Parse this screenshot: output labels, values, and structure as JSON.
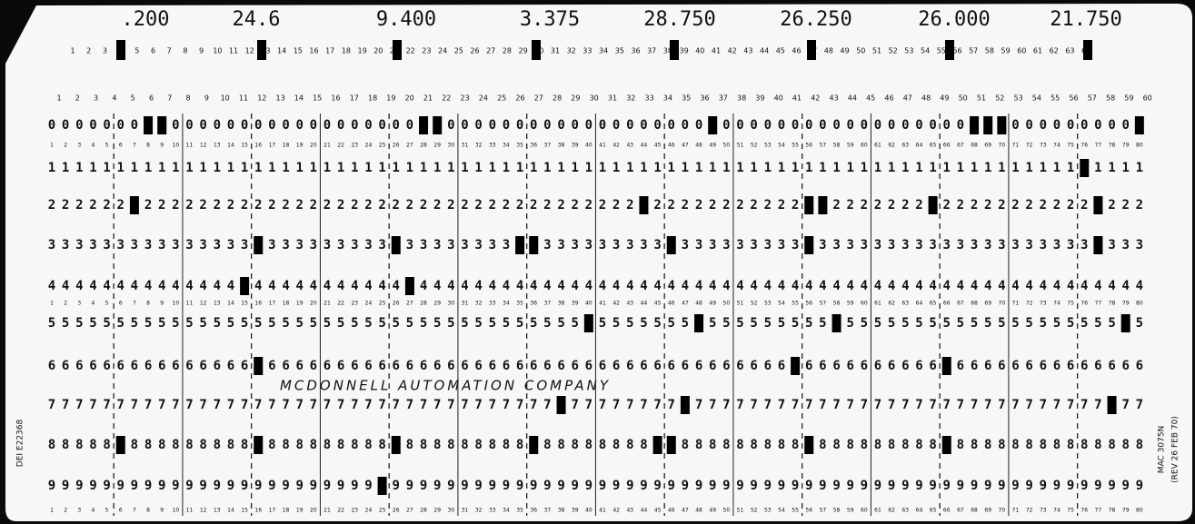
{
  "card": {
    "field_values": [
      ".200",
      "24.6",
      "9.400",
      "3.375",
      "28.750",
      "26.250",
      "26.000",
      "21.750"
    ],
    "column_numbers": [
      1,
      2,
      3,
      4,
      5,
      6,
      7,
      8,
      9,
      10,
      11,
      12,
      13,
      14,
      15,
      16,
      17,
      18,
      19,
      20,
      21,
      22,
      23,
      24,
      25,
      26,
      27,
      28,
      29,
      30,
      31,
      32,
      33,
      34,
      35,
      36,
      37,
      38,
      39,
      40,
      41,
      42,
      43,
      44,
      45,
      46,
      47,
      48,
      49,
      50,
      51,
      52,
      53,
      54,
      55,
      56,
      57,
      58,
      59,
      60,
      61,
      62,
      63,
      64,
      65,
      66,
      67,
      68,
      69,
      70,
      71,
      72,
      73,
      74,
      75,
      76,
      77,
      78,
      79,
      80
    ],
    "rows": [
      "0",
      "1",
      "2",
      "3",
      "4",
      "5",
      "6",
      "7",
      "8",
      "9"
    ],
    "punches": [
      [
        0,
        8
      ],
      [
        0,
        9
      ],
      [
        0,
        28
      ],
      [
        0,
        29
      ],
      [
        0,
        49
      ],
      [
        0,
        68
      ],
      [
        0,
        69
      ],
      [
        0,
        70
      ],
      [
        0,
        80
      ],
      [
        1,
        76
      ],
      [
        2,
        7
      ],
      [
        2,
        44
      ],
      [
        2,
        56
      ],
      [
        2,
        57
      ],
      [
        2,
        65
      ],
      [
        2,
        77
      ],
      [
        3,
        16
      ],
      [
        3,
        26
      ],
      [
        3,
        35
      ],
      [
        3,
        36
      ],
      [
        3,
        46
      ],
      [
        3,
        56
      ],
      [
        3,
        77
      ],
      [
        4,
        15
      ],
      [
        4,
        27
      ],
      [
        5,
        40
      ],
      [
        5,
        48
      ],
      [
        5,
        58
      ],
      [
        5,
        79
      ],
      [
        6,
        16
      ],
      [
        6,
        55
      ],
      [
        6,
        66
      ],
      [
        7,
        38
      ],
      [
        7,
        47
      ],
      [
        7,
        78
      ],
      [
        8,
        6
      ],
      [
        8,
        16
      ],
      [
        8,
        26
      ],
      [
        8,
        36
      ],
      [
        8,
        45
      ],
      [
        8,
        46
      ],
      [
        8,
        56
      ],
      [
        8,
        66
      ],
      [
        9,
        25
      ]
    ],
    "company": "MCDONNELL AUTOMATION COMPANY",
    "serial": "DEI E22368",
    "form": "MAC 3075N",
    "revision": "(REV 26 FEB 70)"
  }
}
